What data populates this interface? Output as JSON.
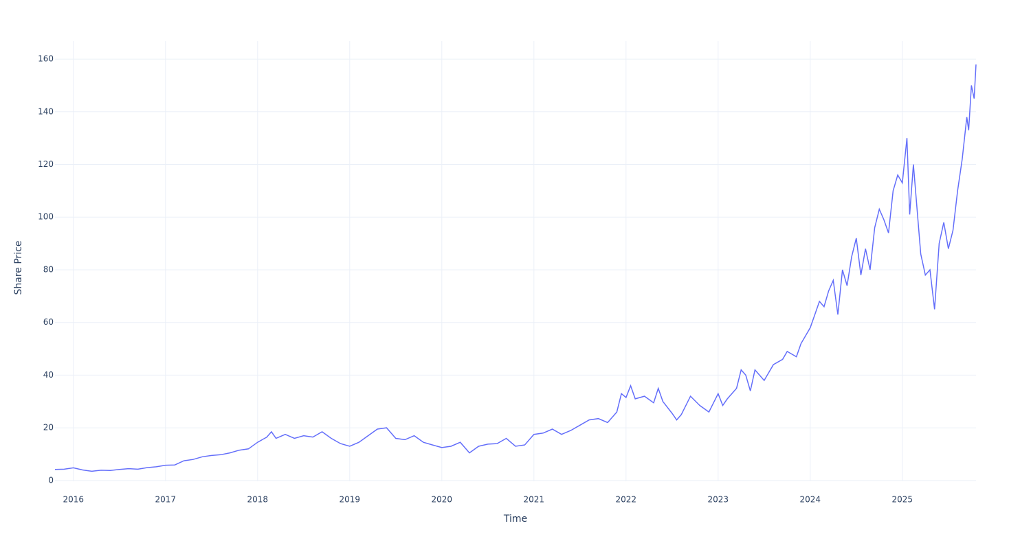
{
  "chart_data": {
    "type": "line",
    "x_label": "Time",
    "y_label": "Share Price",
    "x": [
      2015.8,
      2015.9,
      2016.0,
      2016.1,
      2016.2,
      2016.3,
      2016.4,
      2016.5,
      2016.6,
      2016.7,
      2016.8,
      2016.9,
      2017.0,
      2017.1,
      2017.2,
      2017.3,
      2017.4,
      2017.5,
      2017.6,
      2017.7,
      2017.8,
      2017.9,
      2018.0,
      2018.1,
      2018.15,
      2018.2,
      2018.3,
      2018.4,
      2018.5,
      2018.6,
      2018.7,
      2018.8,
      2018.9,
      2019.0,
      2019.1,
      2019.2,
      2019.3,
      2019.4,
      2019.5,
      2019.6,
      2019.7,
      2019.8,
      2019.9,
      2020.0,
      2020.1,
      2020.2,
      2020.3,
      2020.4,
      2020.5,
      2020.6,
      2020.7,
      2020.8,
      2020.9,
      2021.0,
      2021.1,
      2021.2,
      2021.3,
      2021.4,
      2021.5,
      2021.6,
      2021.7,
      2021.8,
      2021.9,
      2021.95,
      2022.0,
      2022.05,
      2022.1,
      2022.2,
      2022.3,
      2022.35,
      2022.4,
      2022.5,
      2022.55,
      2022.6,
      2022.7,
      2022.8,
      2022.9,
      2023.0,
      2023.05,
      2023.1,
      2023.2,
      2023.25,
      2023.3,
      2023.35,
      2023.4,
      2023.5,
      2023.6,
      2023.7,
      2023.75,
      2023.85,
      2023.9,
      2024.0,
      2024.05,
      2024.1,
      2024.15,
      2024.2,
      2024.25,
      2024.3,
      2024.35,
      2024.4,
      2024.45,
      2024.5,
      2024.55,
      2024.6,
      2024.65,
      2024.7,
      2024.75,
      2024.8,
      2024.85,
      2024.9,
      2024.95,
      2025.0,
      2025.05,
      2025.08,
      2025.12,
      2025.2,
      2025.25,
      2025.3,
      2025.35,
      2025.4,
      2025.45,
      2025.5,
      2025.55,
      2025.6,
      2025.65,
      2025.7,
      2025.72,
      2025.75,
      2025.78,
      2025.8
    ],
    "series": [
      {
        "color": "#636efa",
        "values": [
          4.2,
          4.3,
          4.8,
          4.0,
          3.5,
          3.9,
          3.8,
          4.2,
          4.5,
          4.3,
          4.9,
          5.2,
          5.8,
          5.9,
          7.5,
          8.0,
          9.0,
          9.5,
          9.8,
          10.5,
          11.5,
          12.0,
          14.5,
          16.5,
          18.5,
          16.0,
          17.5,
          16.0,
          17.0,
          16.5,
          18.5,
          16.0,
          14.0,
          13.0,
          14.5,
          17.0,
          19.5,
          20.0,
          16.0,
          15.5,
          17.0,
          14.5,
          13.5,
          12.5,
          13.0,
          14.5,
          10.5,
          13.0,
          13.8,
          14.0,
          16.0,
          13.0,
          13.5,
          17.5,
          18.0,
          19.5,
          17.5,
          19.0,
          21.0,
          23.0,
          23.5,
          22.0,
          26.0,
          33.0,
          31.5,
          36.0,
          31.0,
          32.0,
          29.5,
          35.0,
          30.0,
          25.5,
          23.0,
          25.0,
          32.0,
          28.5,
          26.0,
          33.0,
          28.5,
          31.0,
          35.0,
          42.0,
          40.0,
          34.0,
          42.0,
          38.0,
          44.0,
          46.0,
          49.0,
          47.0,
          52.0,
          58.0,
          63.0,
          68.0,
          66.0,
          72.0,
          76.0,
          63.0,
          80.0,
          74.0,
          85.0,
          92.0,
          78.0,
          88.0,
          80.0,
          96.0,
          103.0,
          99.0,
          94.0,
          110.0,
          116.0,
          113.0,
          130.0,
          101.0,
          120.0,
          86.0,
          78.0,
          80.0,
          65.0,
          90.0,
          98.0,
          88.0,
          95.0,
          110.0,
          122.0,
          138.0,
          133.0,
          150.0,
          145.0,
          158.0
        ]
      }
    ],
    "xlim": [
      2015.8,
      2025.8
    ],
    "xticks": [
      2016,
      2017,
      2018,
      2019,
      2020,
      2021,
      2022,
      2023,
      2024,
      2025
    ],
    "ylim": [
      -0.3,
      166.8
    ],
    "yticks": [
      0,
      20,
      40,
      60,
      80,
      100,
      120,
      140,
      160
    ],
    "grid": true
  }
}
